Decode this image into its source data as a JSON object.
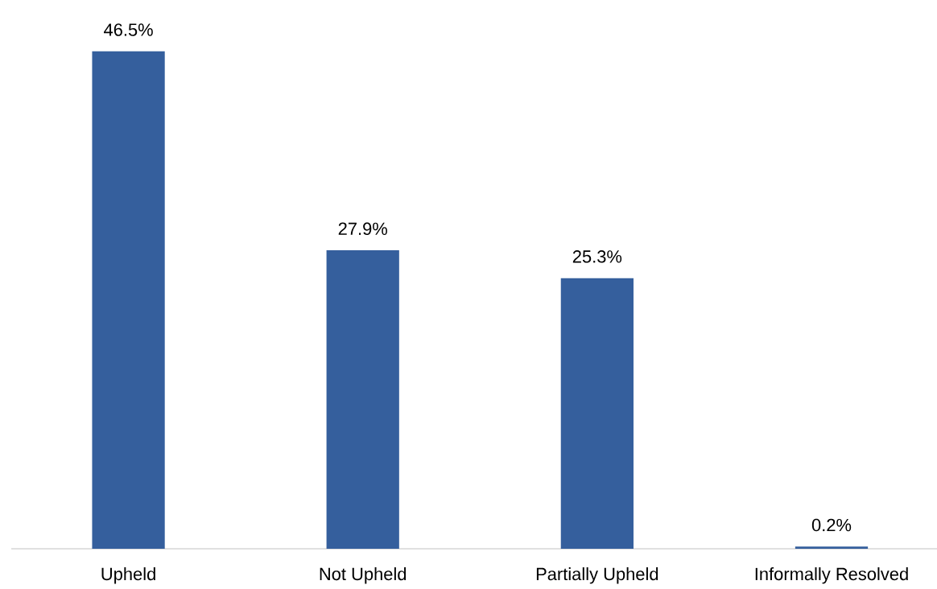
{
  "chart_data": {
    "type": "bar",
    "categories": [
      "Upheld",
      "Not Upheld",
      "Partially Upheld",
      "Informally Resolved"
    ],
    "values": [
      46.5,
      27.9,
      25.3,
      0.2
    ],
    "value_labels": [
      "46.5%",
      "27.9%",
      "25.3%",
      "0.2%"
    ],
    "color": "#355f9d"
  }
}
